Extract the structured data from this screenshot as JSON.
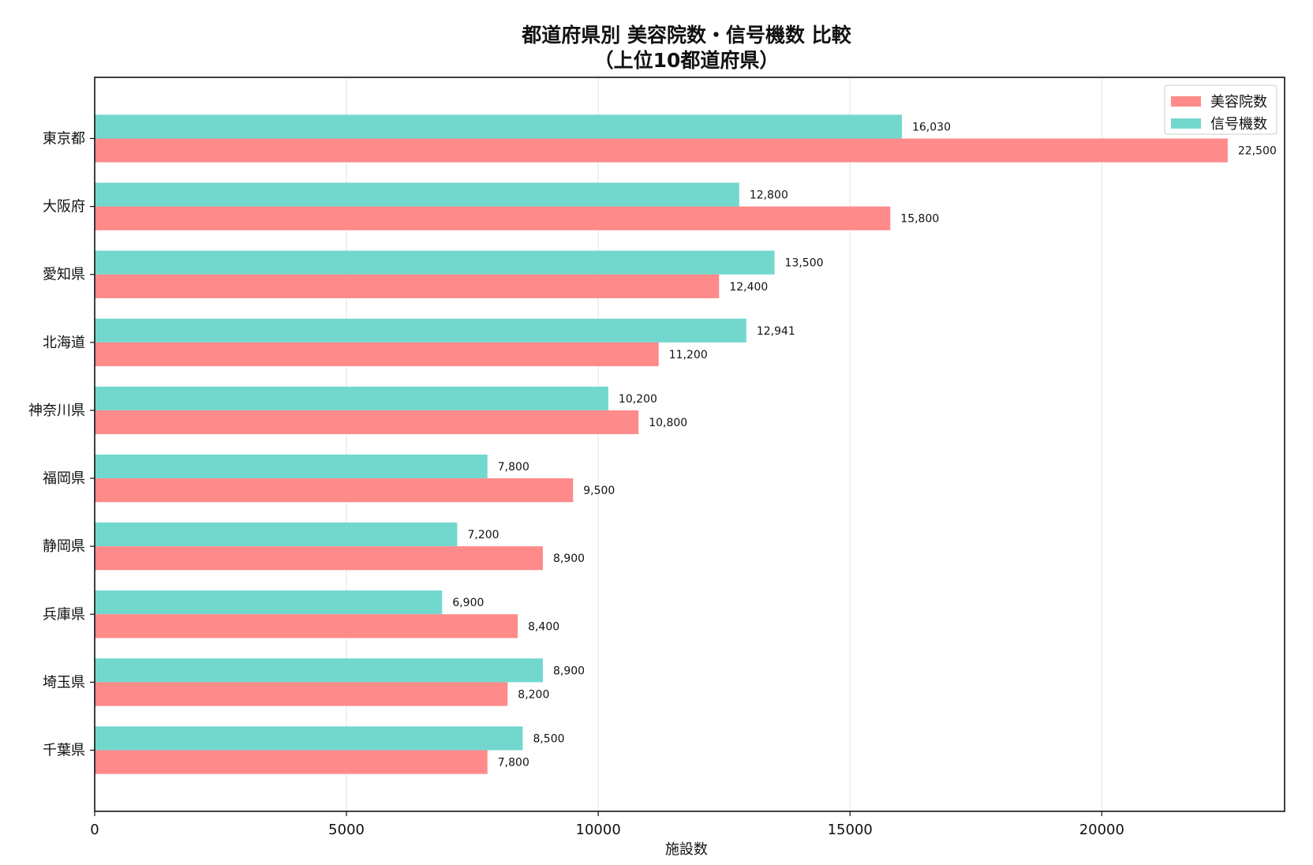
{
  "chart_data": {
    "type": "bar",
    "orientation": "horizontal",
    "title": [
      "都道府県別 美容院数・信号機数 比較",
      "（上位10都道府県）"
    ],
    "xlabel": "施設数",
    "ylabel": "",
    "xlim": [
      0,
      23630
    ],
    "xticks": [
      0,
      5000,
      10000,
      15000,
      20000
    ],
    "grid": "x",
    "legend_position": "top-right",
    "categories": [
      "東京都",
      "大阪府",
      "愛知県",
      "北海道",
      "神奈川県",
      "福岡県",
      "静岡県",
      "兵庫県",
      "埼玉県",
      "千葉県"
    ],
    "series": [
      {
        "name": "美容院数",
        "color": "#ff8a8a",
        "values": [
          22500,
          15800,
          12400,
          11200,
          10800,
          9500,
          8900,
          8400,
          8200,
          7800
        ],
        "labels": [
          "22,500",
          "15,800",
          "12,400",
          "11,200",
          "10,800",
          "9,500",
          "8,900",
          "8,400",
          "8,200",
          "7,800"
        ]
      },
      {
        "name": "信号機数",
        "color": "#72d8ce",
        "values": [
          16030,
          12800,
          13500,
          12941,
          10200,
          7800,
          7200,
          6900,
          8900,
          8500
        ],
        "labels": [
          "16,030",
          "12,800",
          "13,500",
          "12,941",
          "10,200",
          "7,800",
          "7,200",
          "6,900",
          "8,900",
          "8,500"
        ]
      }
    ]
  }
}
